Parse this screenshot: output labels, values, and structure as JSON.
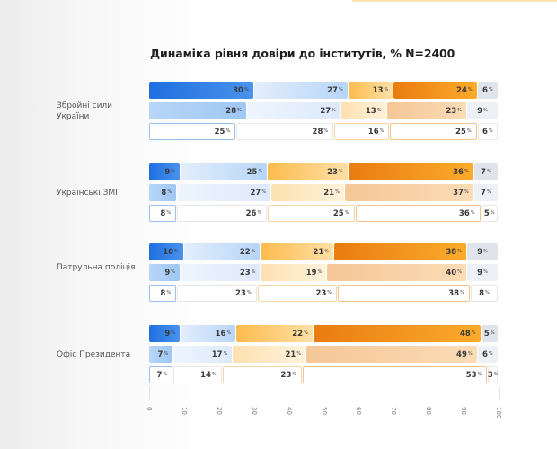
{
  "chart_data": {
    "type": "bar",
    "orientation": "horizontal-stacked-100",
    "title": "Динаміка рівня довіри до інститутів, % N=2400",
    "xlabel": "",
    "ylabel": "",
    "xlim": [
      0,
      100
    ],
    "x_ticks": [
      "0",
      "10",
      "20",
      "30",
      "40",
      "50",
      "60",
      "70",
      "80",
      "90",
      "100"
    ],
    "percent_sign": "%",
    "series_styles": {
      "row0": [
        "#2f7de1",
        "#bcd8f8",
        "#fdc569",
        "#f08e1c",
        "#dfe4ea"
      ],
      "row1": [
        "#a9cdf5",
        "#e6f0fd",
        "#fee8c3",
        "#f7cfa3",
        "#edf0f4"
      ],
      "row2_border": [
        "#9cc1ee",
        "#e8e8e8",
        "#f7d6a6",
        "#f3c38a",
        "#e8e8e8"
      ]
    },
    "groups": [
      {
        "label": "Збройні сили України",
        "rows": [
          [
            30,
            27,
            13,
            24,
            6
          ],
          [
            28,
            27,
            13,
            23,
            9
          ],
          [
            25,
            28,
            16,
            25,
            6
          ]
        ]
      },
      {
        "label": "Українські ЗМІ",
        "rows": [
          [
            9,
            25,
            23,
            36,
            7
          ],
          [
            8,
            27,
            21,
            37,
            7
          ],
          [
            8,
            26,
            25,
            36,
            5
          ]
        ]
      },
      {
        "label": "Патрульна поліція",
        "rows": [
          [
            10,
            22,
            21,
            38,
            9
          ],
          [
            9,
            23,
            19,
            40,
            9
          ],
          [
            8,
            23,
            23,
            38,
            8
          ]
        ]
      },
      {
        "label": "Офіс Президента",
        "rows": [
          [
            9,
            16,
            22,
            48,
            5
          ],
          [
            7,
            17,
            21,
            49,
            6
          ],
          [
            7,
            14,
            23,
            53,
            3
          ]
        ]
      }
    ]
  }
}
